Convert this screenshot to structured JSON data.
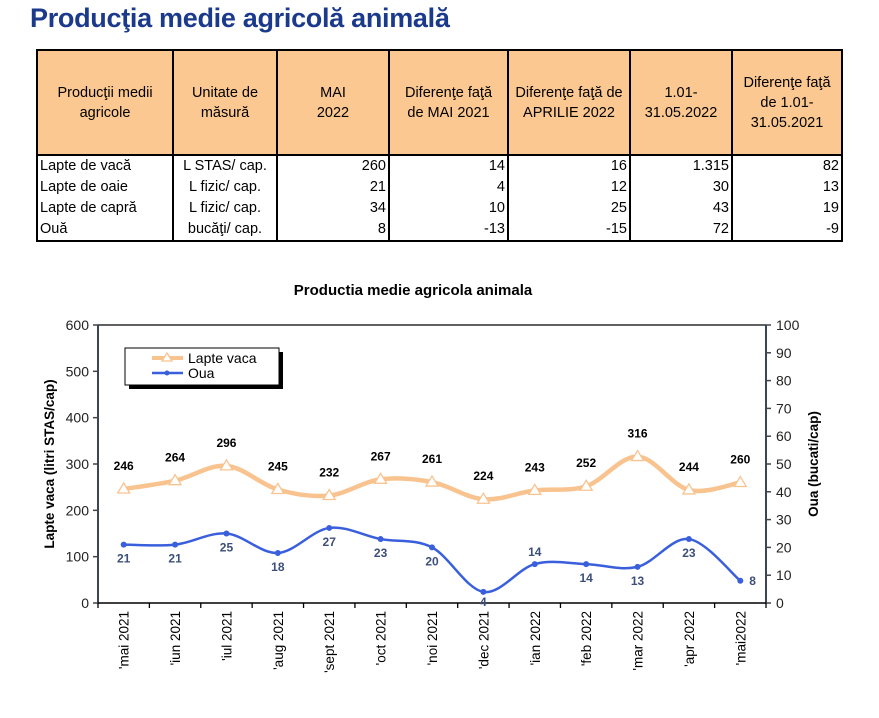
{
  "page_title": "Producţia medie agricolă animală",
  "table": {
    "headers": [
      [
        "Producţii medii",
        "agricole"
      ],
      [
        "Unitate de",
        "măsură"
      ],
      [
        "MAI",
        "2022"
      ],
      [
        "Diferenţe  faţă",
        "de MAI 2021"
      ],
      [
        "Diferenţe faţă de",
        "APRILIE 2022"
      ],
      [
        "1.01-",
        "31.05.2022"
      ],
      [
        "Diferenţe faţă",
        "de 1.01-",
        "31.05.2021"
      ]
    ],
    "rows": [
      [
        "Lapte de vacă",
        "L STAS/ cap.",
        "260",
        "14",
        "16",
        "1.315",
        "82"
      ],
      [
        "Lapte de oaie",
        "L fizic/ cap.",
        "21",
        "4",
        "12",
        "30",
        "13"
      ],
      [
        "Lapte de capră",
        "L fizic/ cap.",
        "34",
        "10",
        "25",
        "43",
        "19"
      ],
      [
        "Ouă",
        "bucăţi/ cap.",
        "8",
        "-13",
        "-15",
        "72",
        "-9"
      ]
    ]
  },
  "chart_data": {
    "type": "line",
    "title": "Productia medie agricola animala",
    "categories": [
      "'mai 2021",
      "'iun 2021",
      "'iul 2021",
      "'aug 2021",
      "'sept 2021",
      "'oct 2021",
      "'noi 2021",
      "'dec 2021",
      "'ian 2022",
      "'feb 2022",
      "'mar 2022",
      "'apr 2022",
      "'mai2022"
    ],
    "ylabel": "Lapte vaca (litri STAS/cap)",
    "y2label": "Oua (bucati/cap)",
    "ylim": [
      0,
      600
    ],
    "yticks": [
      "0",
      "100",
      "200",
      "300",
      "400",
      "500",
      "600"
    ],
    "y2lim": [
      0,
      100
    ],
    "y2ticks": [
      "0",
      "10",
      "20",
      "30",
      "40",
      "50",
      "60",
      "70",
      "80",
      "90",
      "100"
    ],
    "legend_position": "top-left",
    "series": [
      {
        "name": "Lapte vaca",
        "axis": "left",
        "color": "#f9c38f",
        "marker": "triangle",
        "values": [
          246,
          264,
          296,
          245,
          232,
          267,
          261,
          224,
          243,
          252,
          316,
          244,
          260
        ],
        "labels": [
          "246",
          "264",
          "296",
          "245",
          "232",
          "267",
          "261",
          "224",
          "243",
          "252",
          "316",
          "244",
          "260"
        ]
      },
      {
        "name": "Oua",
        "axis": "right",
        "color": "#3a5fdc",
        "marker": "circle",
        "values": [
          21,
          21,
          25,
          18,
          27,
          23,
          20,
          4,
          14,
          14,
          13,
          23,
          8
        ],
        "labels": [
          "21",
          "21",
          "25",
          "18",
          "27",
          "23",
          "20",
          "4",
          "14",
          "14",
          "13",
          "23",
          "8"
        ]
      }
    ]
  }
}
